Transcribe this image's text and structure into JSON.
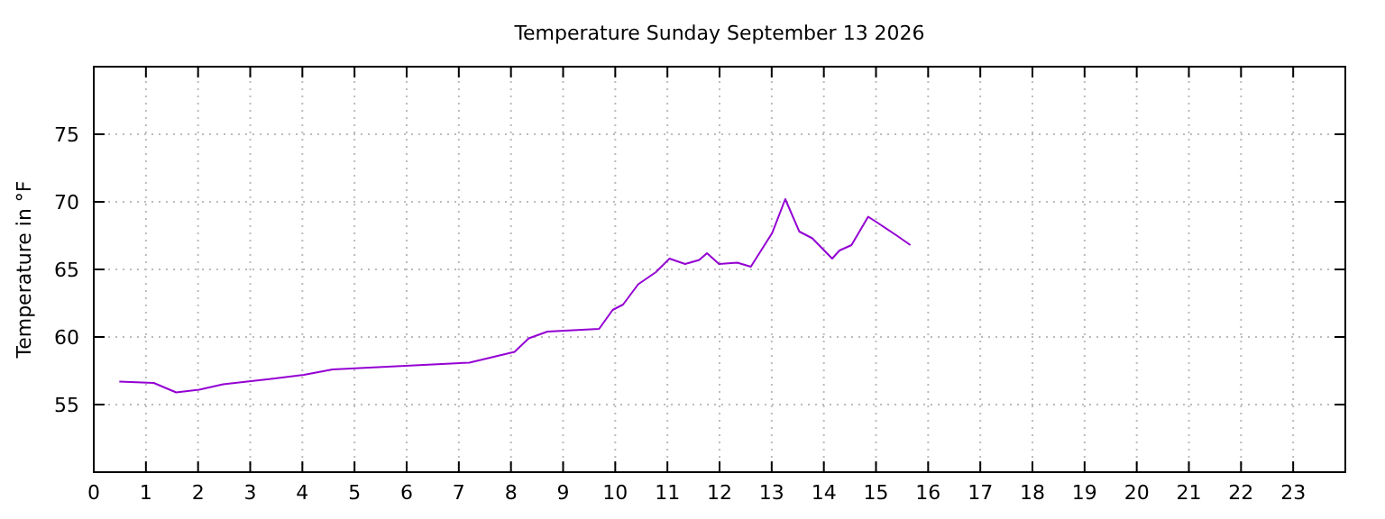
{
  "chart_data": {
    "type": "line",
    "title": "Temperature Sunday September 13 2026",
    "ylabel": "Temperature in °F",
    "x": [
      0.49,
      1.15,
      1.58,
      2.02,
      2.48,
      3.4,
      4.03,
      4.58,
      7.2,
      8.07,
      8.34,
      8.7,
      9.69,
      9.95,
      10.15,
      10.44,
      10.78,
      11.04,
      11.34,
      11.61,
      11.76,
      11.99,
      12.34,
      12.6,
      13.01,
      13.26,
      13.53,
      13.78,
      14.16,
      14.3,
      14.53,
      14.85,
      15.05,
      15.4,
      15.66
    ],
    "series": [
      {
        "color": "#9400d3",
        "values": [
          56.7,
          56.6,
          55.9,
          56.1,
          56.5,
          56.9,
          57.2,
          57.6,
          58.1,
          58.9,
          59.9,
          60.4,
          60.6,
          62.0,
          62.4,
          63.9,
          64.8,
          65.8,
          65.4,
          65.7,
          66.2,
          65.4,
          65.5,
          65.2,
          67.7,
          70.2,
          67.8,
          67.3,
          65.8,
          66.4,
          66.8,
          68.9,
          68.4,
          67.5,
          66.8
        ]
      }
    ],
    "xlim": [
      0,
      24
    ],
    "xticks": [
      0,
      1,
      2,
      3,
      4,
      5,
      6,
      7,
      8,
      9,
      10,
      11,
      12,
      13,
      14,
      15,
      16,
      17,
      18,
      19,
      20,
      21,
      22,
      23
    ],
    "ylim": [
      50,
      80
    ],
    "yticks": [
      55,
      60,
      65,
      70,
      75
    ],
    "grid": true,
    "marker": "none",
    "line_style": "solid"
  }
}
